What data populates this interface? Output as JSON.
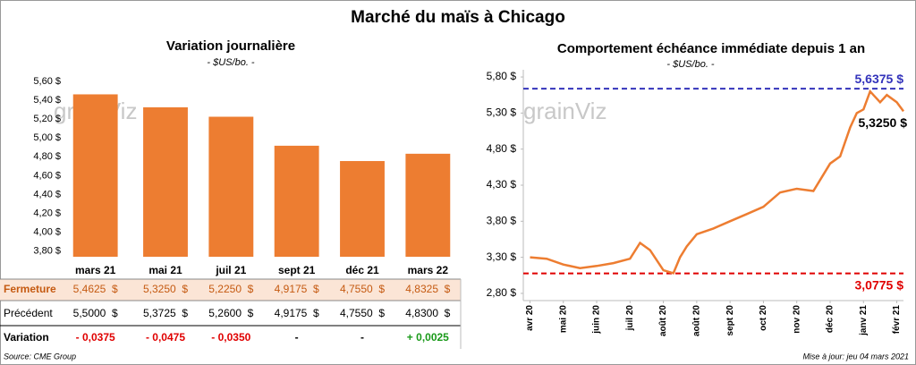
{
  "title": "Marché du maïs à Chicago",
  "chart_data": [
    {
      "type": "bar",
      "title": "Variation journalière",
      "subtitle": "- $US/bo. -",
      "categories": [
        "mars 21",
        "mai 21",
        "juil 21",
        "sept 21",
        "déc 21",
        "mars 22"
      ],
      "series": [
        {
          "name": "Fermeture",
          "color": "#ed7d31",
          "values": [
            5.4625,
            5.325,
            5.225,
            4.9175,
            4.755,
            4.8325
          ],
          "value_labels": [
            "5,4625  $",
            "5,3250  $",
            "5,2250  $",
            "4,9175  $",
            "4,7550  $",
            "4,8325  $"
          ]
        }
      ],
      "ylim": [
        3.74,
        5.65
      ],
      "yticks": [
        {
          "value": 3.8,
          "label": "3,80 $"
        },
        {
          "value": 4.0,
          "label": "4,00 $"
        },
        {
          "value": 4.2,
          "label": "4,20 $"
        },
        {
          "value": 4.4,
          "label": "4,40 $"
        },
        {
          "value": 4.6,
          "label": "4,60 $"
        },
        {
          "value": 4.8,
          "label": "4,80 $"
        },
        {
          "value": 5.0,
          "label": "5,00 $"
        },
        {
          "value": 5.2,
          "label": "5,20 $"
        },
        {
          "value": 5.4,
          "label": "5,40 $"
        },
        {
          "value": 5.6,
          "label": "5,60 $"
        }
      ],
      "watermark": "grainViz"
    },
    {
      "type": "line",
      "title": "Comportement  échéance immédiate depuis 1 an",
      "subtitle": "- $US/bo. -",
      "x": [
        0,
        0.5,
        1,
        1.5,
        2,
        2.5,
        3,
        3.3,
        3.6,
        4,
        4.3,
        4.5,
        4.7,
        5,
        5.5,
        6,
        6.5,
        7,
        7.5,
        8,
        8.5,
        9,
        9.3,
        9.6,
        9.8,
        10,
        10.2,
        10.5,
        10.7,
        11,
        11.2
      ],
      "series": [
        {
          "name": "Comportement",
          "color": "#ed7d31",
          "values": [
            3.3,
            3.28,
            3.2,
            3.15,
            3.18,
            3.22,
            3.28,
            3.5,
            3.4,
            3.12,
            3.08,
            3.3,
            3.45,
            3.62,
            3.7,
            3.8,
            3.9,
            4.0,
            4.2,
            4.25,
            4.22,
            4.6,
            4.7,
            5.1,
            5.3,
            5.35,
            5.6,
            5.45,
            5.55,
            5.45,
            5.325
          ]
        }
      ],
      "end_label": "5,3250 $",
      "max_line": {
        "value": 5.6375,
        "label": "5,6375 $",
        "color": "#3333bb"
      },
      "min_line": {
        "value": 3.0775,
        "label": "3,0775 $",
        "color": "#e00000"
      },
      "xlim": [
        -0.2,
        11.2
      ],
      "xticks": [
        {
          "value": 0,
          "label": "avr 20"
        },
        {
          "value": 1,
          "label": "mai 20"
        },
        {
          "value": 2,
          "label": "juin 20"
        },
        {
          "value": 3,
          "label": "juil 20"
        },
        {
          "value": 4,
          "label": "août 20"
        },
        {
          "value": 5,
          "label": "août 20"
        },
        {
          "value": 6,
          "label": "sept 20"
        },
        {
          "value": 7,
          "label": "oct 20"
        },
        {
          "value": 8,
          "label": "nov 20"
        },
        {
          "value": 9,
          "label": "déc 20"
        },
        {
          "value": 10,
          "label": "janv 21"
        },
        {
          "value": 11,
          "label": "févr 21"
        }
      ],
      "ylim": [
        2.7,
        5.9
      ],
      "yticks": [
        {
          "value": 2.8,
          "label": "2,80 $"
        },
        {
          "value": 3.3,
          "label": "3,30 $"
        },
        {
          "value": 3.8,
          "label": "3,80 $"
        },
        {
          "value": 4.3,
          "label": "4,30 $"
        },
        {
          "value": 4.8,
          "label": "4,80 $"
        },
        {
          "value": 5.3,
          "label": "5,30 $"
        },
        {
          "value": 5.8,
          "label": "5,80 $"
        }
      ],
      "watermark": "grainViz"
    }
  ],
  "table": {
    "rows": [
      {
        "label": "Précédent",
        "cells": [
          "5,5000  $",
          "5,3725  $",
          "5,2600  $",
          "4,9175  $",
          "4,7550  $",
          "4,8300  $"
        ]
      },
      {
        "label": "Variation",
        "cells": [
          "- 0,0375",
          "- 0,0475",
          "- 0,0350",
          "-",
          "-",
          "+ 0,0025"
        ]
      }
    ]
  },
  "footer": {
    "source": "Source: CME Group",
    "updated": "Mise à jour: jeu 04 mars 2021"
  }
}
